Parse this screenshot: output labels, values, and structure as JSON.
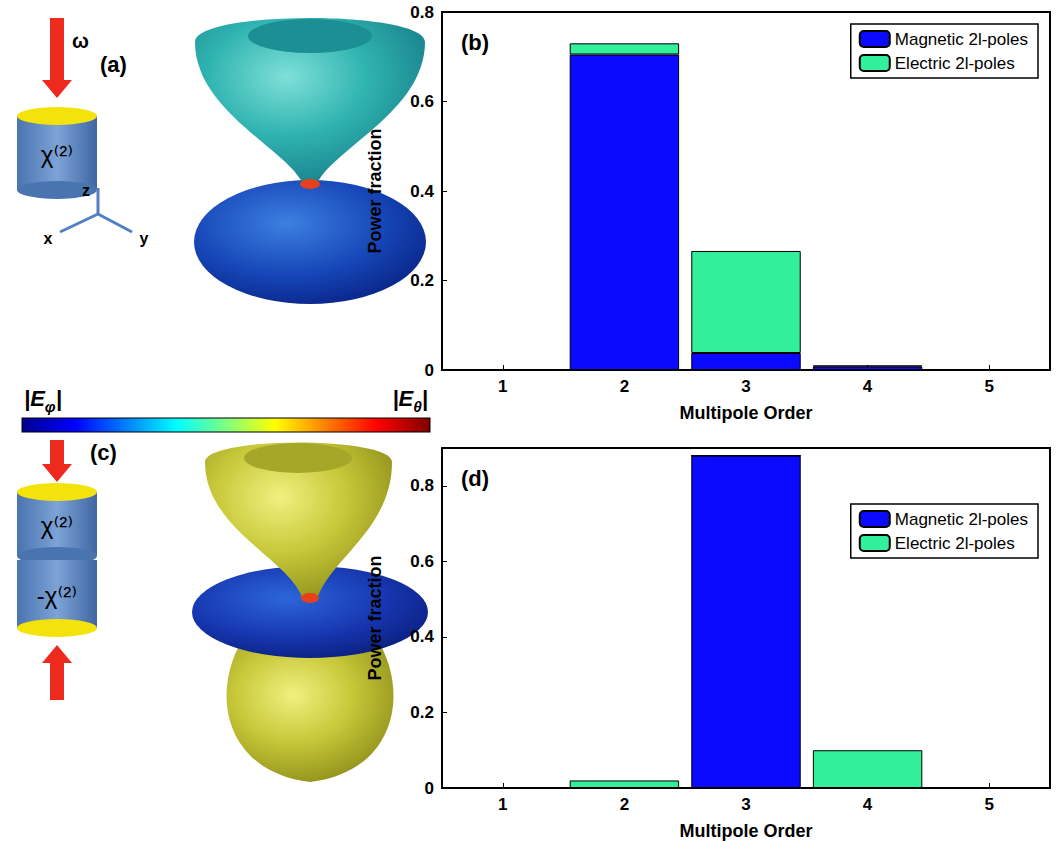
{
  "chart_data": [
    {
      "type": "bar",
      "title": "(b)",
      "stacked": true,
      "grid": false,
      "legend": "upper right",
      "categories": [
        "1",
        "2",
        "3",
        "4",
        "5"
      ],
      "x_label": "Multipole Order",
      "y_label": "Power fraction",
      "ylim": [
        0,
        0.8
      ],
      "yticks": [
        0,
        0.2,
        0.4,
        0.6,
        0.8
      ],
      "series": [
        {
          "name": "Magnetic 2l-poles",
          "color": "#0a0aff",
          "values": [
            0,
            0.705,
            0.038,
            0.008,
            0
          ]
        },
        {
          "name": "Electric 2l-poles",
          "color": "#33ee9a",
          "values": [
            0,
            0.025,
            0.228,
            0.002,
            0
          ]
        }
      ]
    },
    {
      "type": "bar",
      "title": "(d)",
      "stacked": true,
      "grid": false,
      "legend": "right",
      "categories": [
        "1",
        "2",
        "3",
        "4",
        "5"
      ],
      "x_label": "Multipole Order",
      "y_label": "Power fraction",
      "ylim": [
        0,
        0.9
      ],
      "yticks": [
        0,
        0.2,
        0.4,
        0.6,
        0.8
      ],
      "series": [
        {
          "name": "Magnetic 2l-poles",
          "color": "#0a0aff",
          "values": [
            0,
            0,
            0.88,
            0,
            0
          ]
        },
        {
          "name": "Electric 2l-poles",
          "color": "#33ee9a",
          "values": [
            0,
            0.02,
            0,
            0.1,
            0
          ]
        }
      ]
    }
  ],
  "panel_a": {
    "label": "(a)",
    "frequency": "ω",
    "material": "χ⁽²⁾",
    "axes": {
      "x": "x",
      "y": "y",
      "z": "z"
    }
  },
  "panel_c": {
    "label": "(c)",
    "materials": [
      "χ⁽²⁾",
      "-χ⁽²⁾"
    ]
  },
  "colorbar": {
    "left_label": [
      "|E",
      "φ",
      "|"
    ],
    "right_label": [
      "|E",
      "θ",
      "|"
    ]
  }
}
